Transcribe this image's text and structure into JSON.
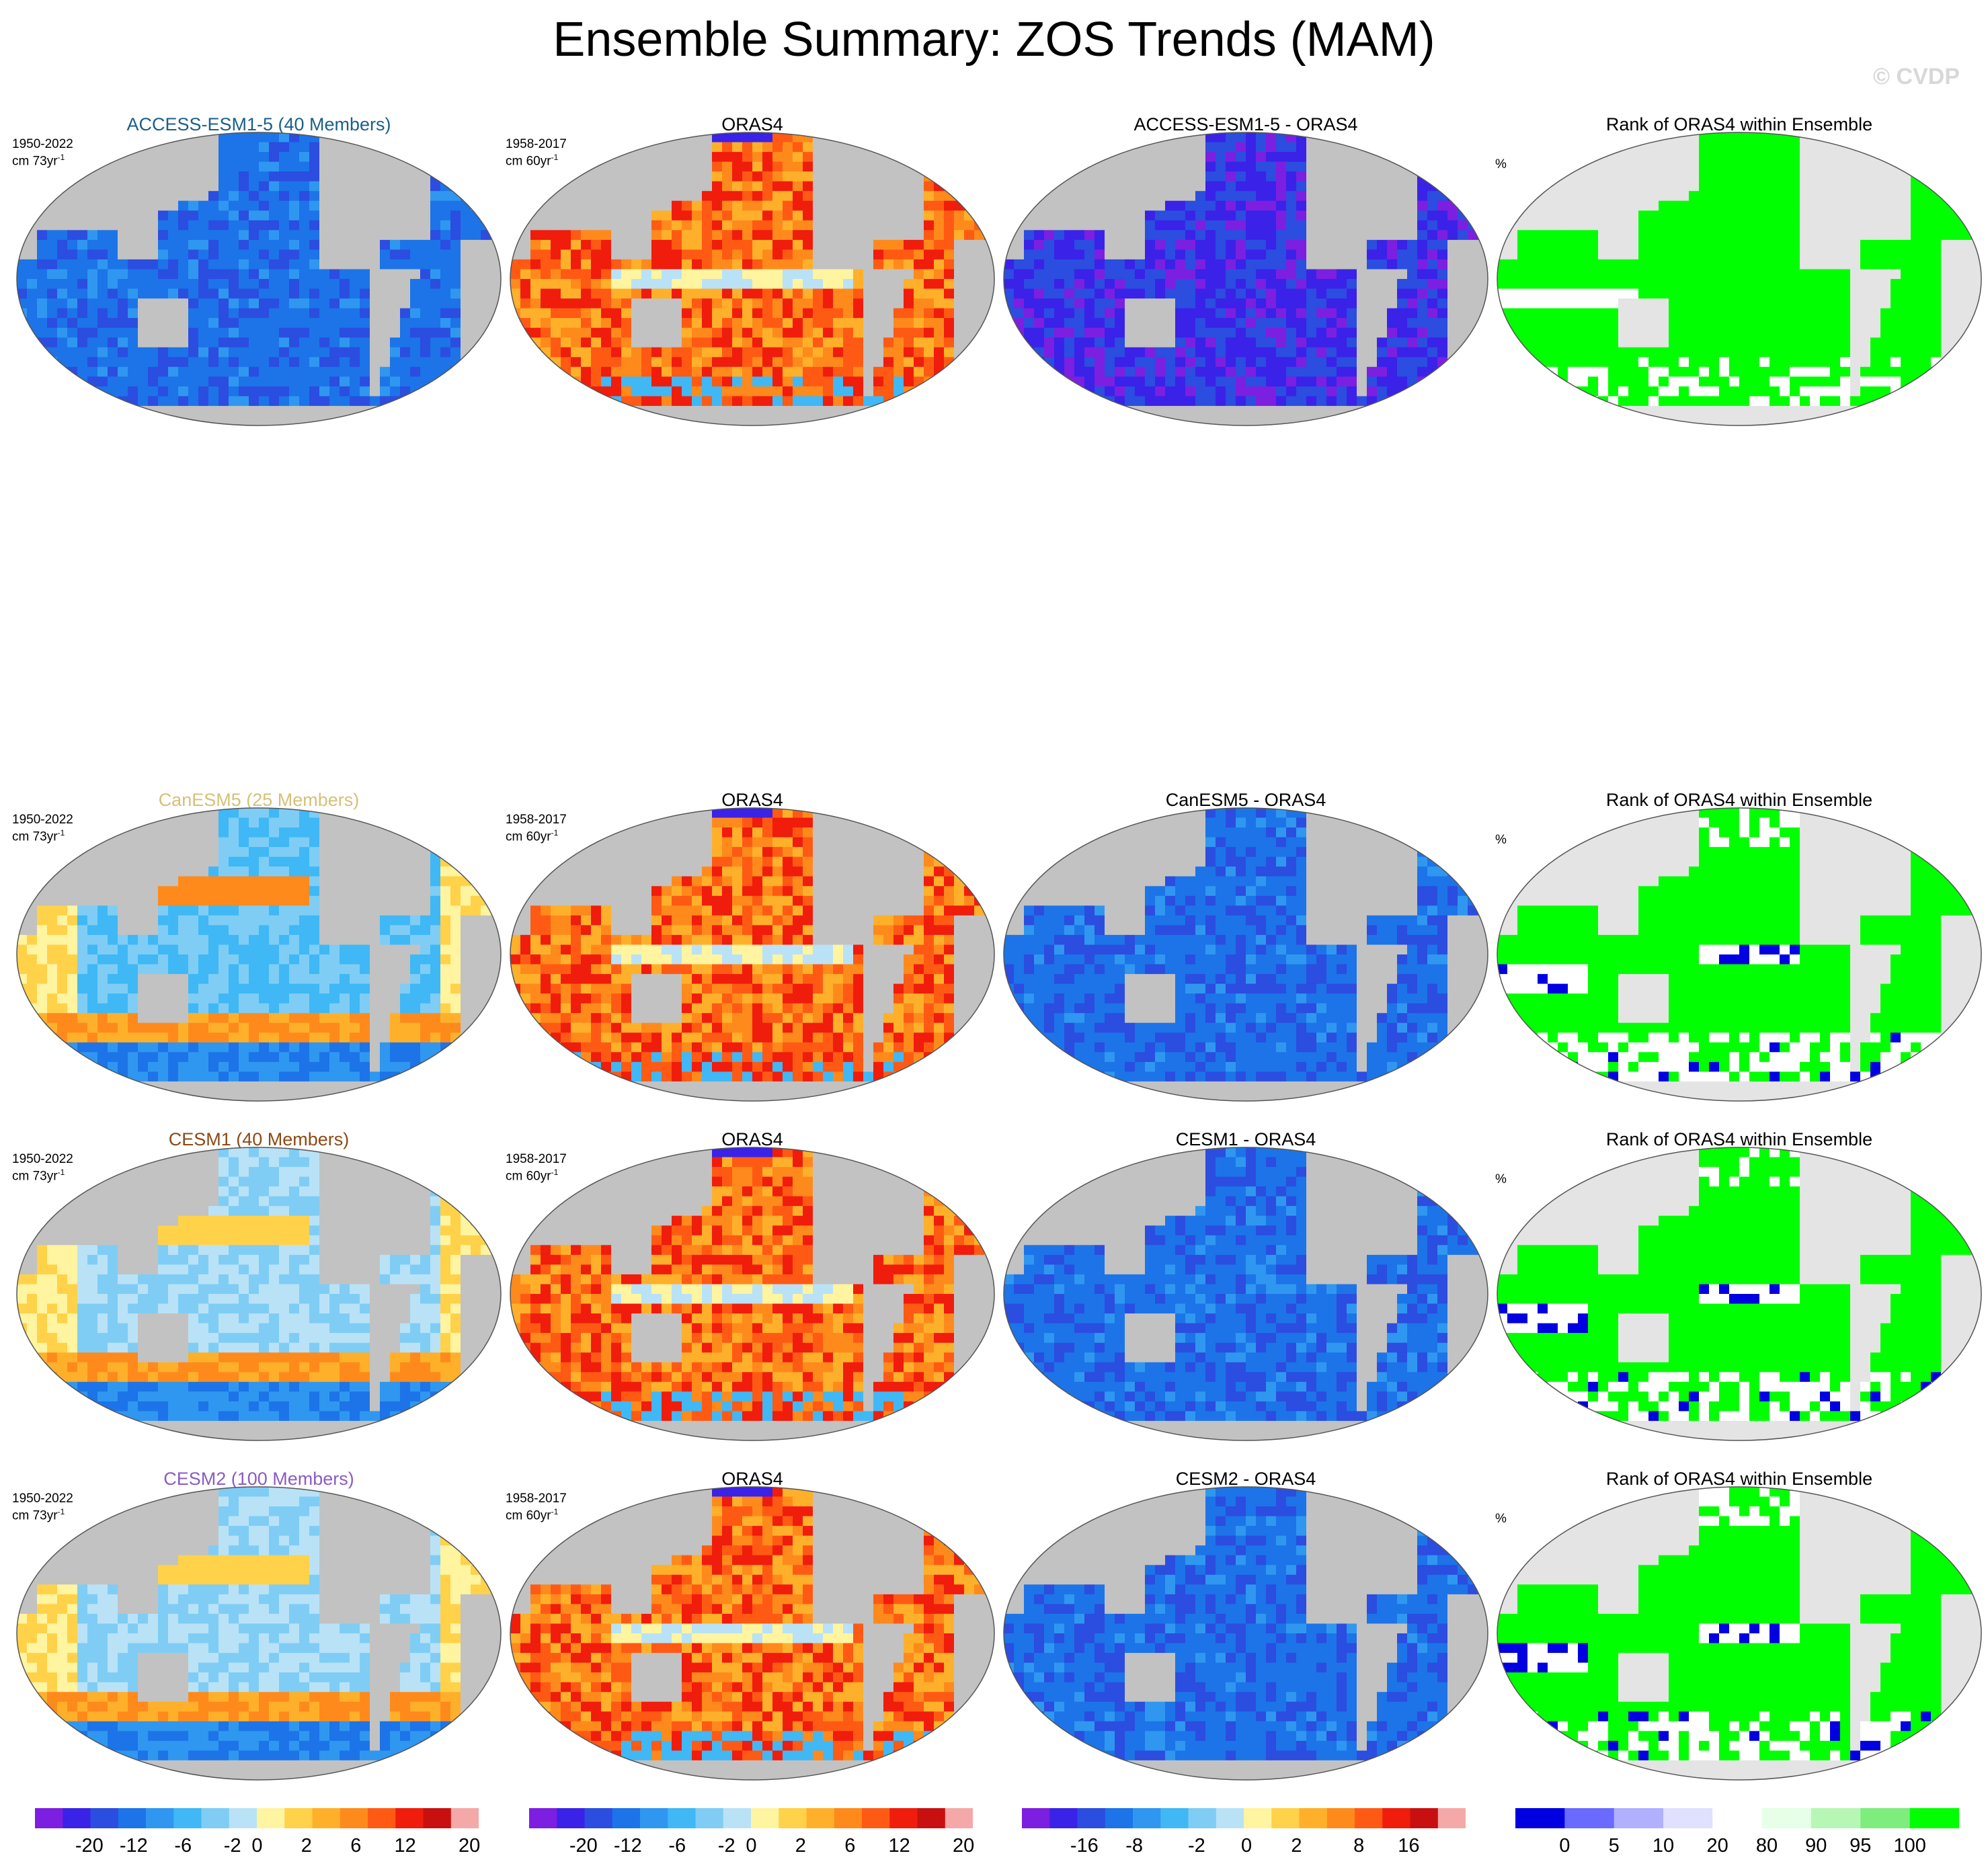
{
  "figure": {
    "title": "Ensemble Summary: ZOS Trends (MAM)",
    "copyright": "© CVDP"
  },
  "rows": [
    {
      "model_title": "ACCESS-ESM1-5 (40 Members)",
      "model_color": "#1a5f8a",
      "model_years": "1950-2022",
      "obs_title": "ORAS4",
      "obs_years": "1958-2017",
      "diff_title": "ACCESS-ESM1-5 - ORAS4",
      "rank_title": "Rank of ORAS4 within Ensemble",
      "rank_units": "%",
      "model_pattern": "blue",
      "diff_pattern": "deepblue",
      "rank_pattern": "green"
    },
    {
      "model_title": "CanESM5 (25 Members)",
      "model_color": "#d4c178",
      "model_years": "1950-2022",
      "obs_title": "ORAS4",
      "obs_years": "1958-2017",
      "diff_title": "CanESM5 - ORAS4",
      "rank_title": "Rank of ORAS4 within Ensemble",
      "rank_units": "%",
      "model_pattern": "mixed",
      "diff_pattern": "blue",
      "rank_pattern": "greenwhite"
    },
    {
      "model_title": "CESM1 (40 Members)",
      "model_color": "#8b4a14",
      "model_years": "1950-2022",
      "obs_title": "ORAS4",
      "obs_years": "1958-2017",
      "diff_title": "CESM1 - ORAS4",
      "rank_title": "Rank of ORAS4 within Ensemble",
      "rank_units": "%",
      "model_pattern": "mixedlight",
      "diff_pattern": "blue",
      "rank_pattern": "greenwhite"
    },
    {
      "model_title": "CESM2 (100 Members)",
      "model_color": "#8a5cc4",
      "model_years": "1950-2022",
      "obs_title": "ORAS4",
      "obs_years": "1958-2017",
      "diff_title": "CESM2 - ORAS4",
      "rank_title": "Rank of ORAS4 within Ensemble",
      "rank_units": "%",
      "model_pattern": "mixedlight",
      "diff_pattern": "blue",
      "rank_pattern": "greenwhite"
    }
  ],
  "units": {
    "model_trend": "cm 73yr",
    "obs_trend": "cm 60yr",
    "exponent": "-1"
  },
  "colors": {
    "land": "#c2c2c2",
    "rank_land": "#e4e4e4",
    "trend_palette": [
      "#7c1fe0",
      "#3a22e8",
      "#2b4de0",
      "#1c74e8",
      "#2f97f0",
      "#3fb8f5",
      "#7fcdf5",
      "#b9e2f7",
      "#fff4a0",
      "#ffd24a",
      "#ffb02a",
      "#ff8a1c",
      "#ff5a14",
      "#f01c0c",
      "#c81010",
      "#f5a8a8"
    ],
    "rank_palette": [
      "#0000e0",
      "#6a6aff",
      "#b0b0ff",
      "#e0e0ff",
      "#ffffff",
      "#e6ffe6",
      "#b6f7b6",
      "#7ded7d",
      "#00ff00"
    ]
  },
  "chart_data": [
    {
      "type": "heatmap",
      "title": "Ensemble Summary: ZOS Trends (MAM)",
      "description_of_panels": "4 rows x 4 columns of global map panels",
      "colorbars": [
        {
          "name": "model",
          "labels": [
            "-20",
            "-12",
            "-6",
            "-2",
            "0",
            "2",
            "6",
            "12",
            "20"
          ]
        },
        {
          "name": "obs",
          "labels": [
            "-20",
            "-12",
            "-6",
            "-2",
            "0",
            "2",
            "6",
            "12",
            "20"
          ]
        },
        {
          "name": "diff",
          "labels": [
            "-16",
            "-8",
            "-2",
            "0",
            "2",
            "8",
            "16"
          ]
        },
        {
          "name": "rank",
          "labels": [
            "0",
            "5",
            "10",
            "20",
            "80",
            "90",
            "95",
            "100"
          ]
        }
      ]
    }
  ]
}
